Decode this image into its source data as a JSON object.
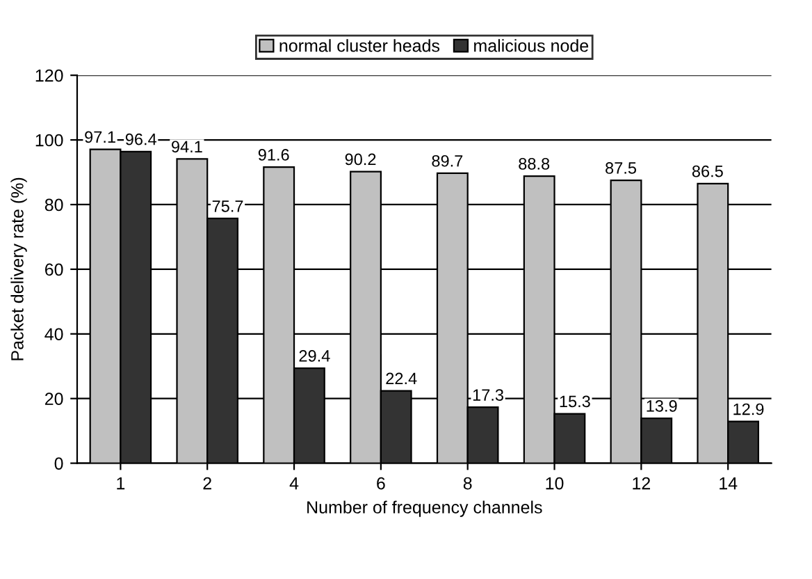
{
  "chart_data": {
    "type": "bar",
    "xlabel": "Number of frequency channels",
    "ylabel": "Packet delivery rate (%)",
    "categories": [
      "1",
      "2",
      "4",
      "6",
      "8",
      "10",
      "12",
      "14"
    ],
    "series": [
      {
        "name": "normal cluster heads",
        "color": "#c0c0c0",
        "values": [
          97.1,
          94.1,
          91.6,
          90.2,
          89.7,
          88.8,
          87.5,
          86.5
        ]
      },
      {
        "name": "malicious node",
        "color": "#333333",
        "values": [
          96.4,
          75.7,
          29.4,
          22.4,
          17.3,
          15.3,
          13.9,
          12.9
        ]
      }
    ],
    "ylim": [
      0,
      120
    ],
    "yticks": [
      0,
      20,
      40,
      60,
      80,
      100,
      120
    ],
    "grid": "y",
    "legend": "top",
    "data_labels": true
  }
}
